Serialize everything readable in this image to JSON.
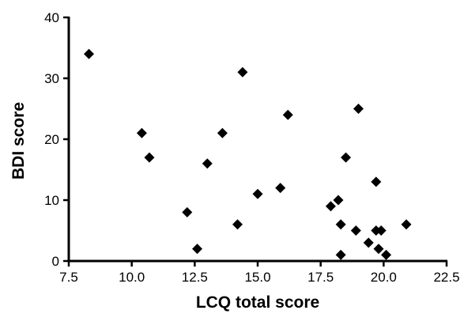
{
  "chart_data": {
    "type": "scatter",
    "xlabel": "LCQ total score",
    "ylabel": "BDI score",
    "xlim": [
      7.5,
      22.5
    ],
    "ylim": [
      0,
      40
    ],
    "xticks": [
      "7.5",
      "10.0",
      "12.5",
      "15.0",
      "17.5",
      "20.0",
      "22.5"
    ],
    "yticks": [
      "0",
      "10",
      "20",
      "30",
      "40"
    ],
    "grid": false,
    "marker": "diamond",
    "color": "#000000",
    "points": [
      {
        "x": 8.3,
        "y": 34
      },
      {
        "x": 10.4,
        "y": 21
      },
      {
        "x": 10.7,
        "y": 17
      },
      {
        "x": 12.2,
        "y": 8
      },
      {
        "x": 12.6,
        "y": 2
      },
      {
        "x": 13.0,
        "y": 16
      },
      {
        "x": 13.6,
        "y": 21
      },
      {
        "x": 14.2,
        "y": 6
      },
      {
        "x": 14.4,
        "y": 31
      },
      {
        "x": 15.0,
        "y": 11
      },
      {
        "x": 15.9,
        "y": 12
      },
      {
        "x": 16.2,
        "y": 24
      },
      {
        "x": 17.9,
        "y": 9
      },
      {
        "x": 18.2,
        "y": 10
      },
      {
        "x": 18.3,
        "y": 6
      },
      {
        "x": 18.3,
        "y": 1
      },
      {
        "x": 18.5,
        "y": 17
      },
      {
        "x": 18.9,
        "y": 5
      },
      {
        "x": 19.0,
        "y": 25
      },
      {
        "x": 19.4,
        "y": 3
      },
      {
        "x": 19.7,
        "y": 13
      },
      {
        "x": 19.7,
        "y": 5
      },
      {
        "x": 19.8,
        "y": 2
      },
      {
        "x": 19.9,
        "y": 5
      },
      {
        "x": 20.1,
        "y": 1
      },
      {
        "x": 20.9,
        "y": 6
      }
    ]
  }
}
